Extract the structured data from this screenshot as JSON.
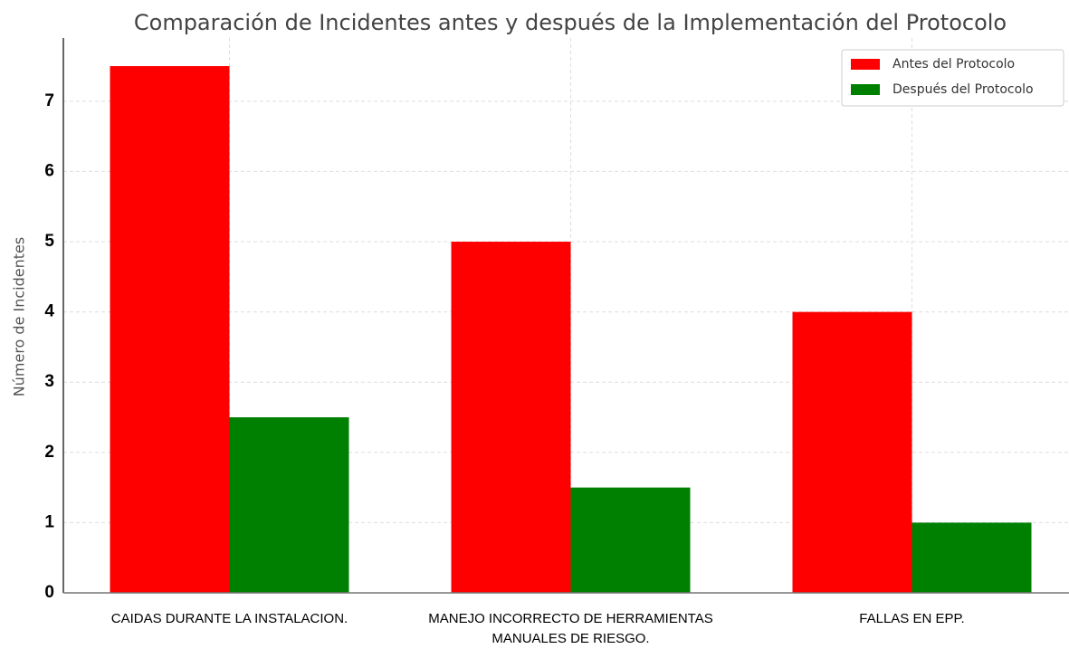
{
  "chart_data": {
    "type": "bar",
    "title": "Comparación de Incidentes antes y después de la Implementación del Protocolo",
    "ylabel": "Número de Incidentes",
    "categories": [
      "CAIDAS DURANTE LA INSTALACION.",
      "MANEJO INCORRECTO DE HERRAMIENTAS MANUALES DE RIESGO.",
      "FALLAS EN EPP."
    ],
    "series": [
      {
        "name": "Antes del Protocolo",
        "color": "#ff0000",
        "values": [
          7.5,
          5,
          4
        ]
      },
      {
        "name": "Después del Protocolo",
        "color": "#008000",
        "values": [
          2.5,
          1.5,
          1
        ]
      }
    ],
    "ylim": [
      0,
      7.9
    ],
    "yticks": [
      0,
      1,
      2,
      3,
      4,
      5,
      6,
      7
    ],
    "grid": true,
    "legend": "upper right"
  }
}
